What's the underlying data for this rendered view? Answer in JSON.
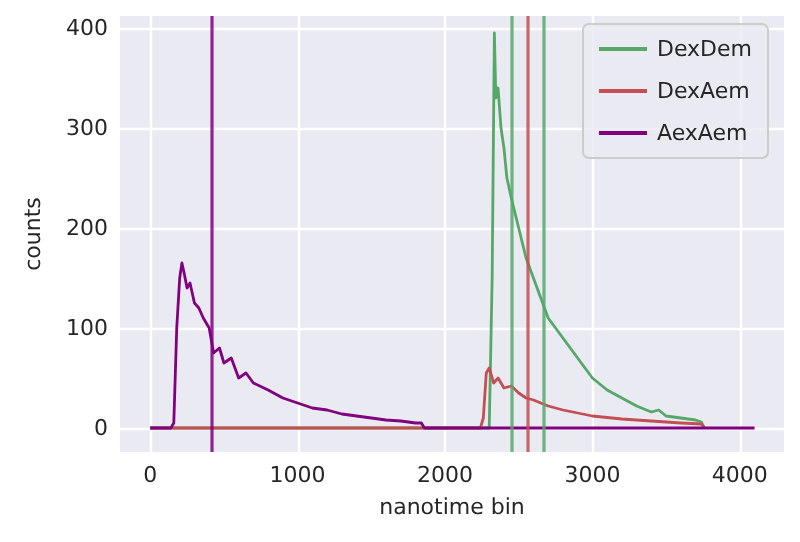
{
  "chart_data": {
    "type": "line",
    "xlabel": "nanotime bin",
    "ylabel": "counts",
    "xlim": [
      -205,
      4300
    ],
    "xticks": [
      0,
      1000,
      2000,
      3000,
      4000
    ],
    "ylim": [
      -24,
      412
    ],
    "yticks": [
      0,
      100,
      200,
      300,
      400
    ],
    "grid": true,
    "legend": "top right",
    "marker": "none",
    "line_style": "solid",
    "series": [
      {
        "name": "DexDem",
        "color": "#55a868",
        "x": [
          0,
          2300,
          2320,
          2335,
          2345,
          2360,
          2380,
          2400,
          2420,
          2450,
          2500,
          2550,
          2600,
          2650,
          2700,
          2800,
          2900,
          3000,
          3100,
          3200,
          3300,
          3400,
          3450,
          3500,
          3600,
          3700,
          3740,
          3760
        ],
        "values": [
          0,
          0,
          150,
          395,
          330,
          340,
          300,
          280,
          250,
          230,
          200,
          170,
          150,
          130,
          110,
          90,
          70,
          50,
          38,
          30,
          22,
          16,
          18,
          12,
          10,
          8,
          6,
          0
        ]
      },
      {
        "name": "DexAem",
        "color": "#c44e52",
        "x": [
          0,
          2240,
          2260,
          2280,
          2300,
          2330,
          2360,
          2400,
          2450,
          2500,
          2550,
          2600,
          2700,
          2800,
          2900,
          3000,
          3200,
          3400,
          3600,
          3740,
          3760
        ],
        "values": [
          0,
          0,
          10,
          55,
          60,
          45,
          50,
          40,
          42,
          35,
          30,
          28,
          22,
          18,
          15,
          12,
          9,
          7,
          5,
          4,
          0
        ]
      },
      {
        "name": "AexAem",
        "color": "#800080",
        "x": [
          0,
          140,
          160,
          180,
          200,
          215,
          230,
          250,
          270,
          300,
          330,
          360,
          400,
          430,
          470,
          500,
          550,
          600,
          650,
          700,
          800,
          900,
          1000,
          1100,
          1200,
          1300,
          1400,
          1500,
          1600,
          1700,
          1800,
          1840,
          1860,
          2000,
          3000,
          4100
        ],
        "values": [
          0,
          0,
          5,
          100,
          150,
          165,
          155,
          140,
          145,
          125,
          120,
          110,
          100,
          75,
          80,
          65,
          70,
          50,
          55,
          45,
          38,
          30,
          25,
          20,
          18,
          14,
          12,
          10,
          8,
          7,
          5,
          5,
          0,
          0,
          0,
          0
        ]
      }
    ],
    "ref_lines": [
      {
        "axis": "x",
        "value": 418,
        "color": "#800080"
      },
      {
        "axis": "x",
        "value": 2453,
        "color": "#55a868"
      },
      {
        "axis": "x",
        "value": 2561,
        "color": "#c44e52"
      },
      {
        "axis": "x",
        "value": 2668,
        "color": "#55a868"
      }
    ]
  }
}
